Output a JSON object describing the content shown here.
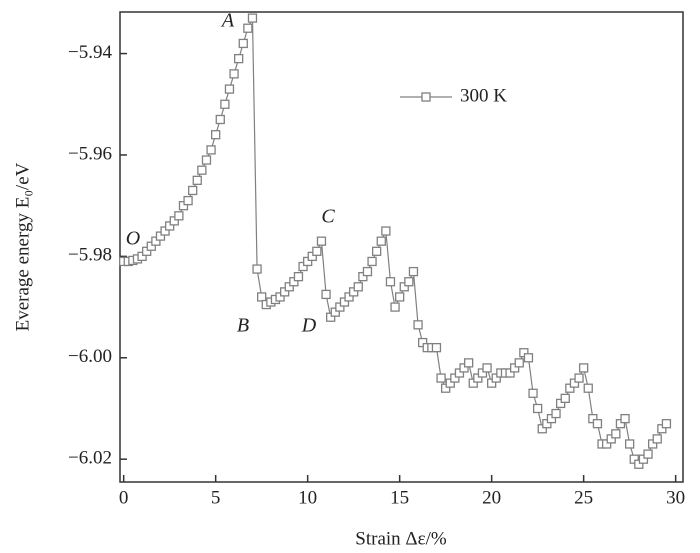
{
  "chart_data": {
    "type": "line",
    "xlabel": "Strain Δε/%",
    "ylabel": "Everage energy E₀/eV",
    "annotations": [
      "A",
      "B",
      "C",
      "D",
      "O"
    ],
    "legend": "upper right",
    "xlim": [
      -0.2,
      30.4
    ],
    "ylim": [
      -6.0245,
      -5.9318
    ],
    "xticks": [
      0,
      5,
      10,
      15,
      20,
      25,
      30
    ],
    "yticks": [
      {
        "value": -5.94,
        "label": "−5.94"
      },
      {
        "value": -5.96,
        "label": "−5.96"
      },
      {
        "value": -5.98,
        "label": "−5.98"
      },
      {
        "value": -6.0,
        "label": "−6.00"
      },
      {
        "value": -6.02,
        "label": "−6.02"
      }
    ],
    "x": [
      0,
      0.25,
      0.5,
      0.75,
      1,
      1.25,
      1.5,
      1.75,
      2,
      2.25,
      2.5,
      2.75,
      3,
      3.25,
      3.5,
      3.75,
      4,
      4.25,
      4.5,
      4.75,
      5,
      5.25,
      5.5,
      5.75,
      6,
      6.25,
      6.5,
      6.75,
      7,
      7.25,
      7.5,
      7.75,
      8,
      8.25,
      8.5,
      8.75,
      9,
      9.25,
      9.5,
      9.75,
      10,
      10.25,
      10.5,
      10.75,
      11,
      11.25,
      11.5,
      11.75,
      12,
      12.25,
      12.5,
      12.75,
      13,
      13.25,
      13.5,
      13.75,
      14,
      14.25,
      14.5,
      14.75,
      15,
      15.25,
      15.5,
      15.75,
      16,
      16.25,
      16.5,
      16.75,
      17,
      17.25,
      17.5,
      17.75,
      18,
      18.25,
      18.5,
      18.75,
      19,
      19.25,
      19.5,
      19.75,
      20,
      20.25,
      20.5,
      20.75,
      21,
      21.25,
      21.5,
      21.75,
      22,
      22.25,
      22.5,
      22.75,
      23,
      23.25,
      23.5,
      23.75,
      24,
      24.25,
      24.5,
      24.75,
      25,
      25.25,
      25.5,
      25.75,
      26,
      26.25,
      26.5,
      26.75,
      27,
      27.25,
      27.5,
      27.75,
      28,
      28.25,
      28.5,
      28.75,
      29,
      29.25,
      29.5
    ],
    "series": [
      {
        "name": "300 K",
        "color": "#808080",
        "values": [
          -5.981,
          -5.981,
          -5.9808,
          -5.9805,
          -5.98,
          -5.979,
          -5.978,
          -5.977,
          -5.976,
          -5.975,
          -5.974,
          -5.973,
          -5.972,
          -5.97,
          -5.969,
          -5.967,
          -5.965,
          -5.963,
          -5.961,
          -5.959,
          -5.956,
          -5.953,
          -5.95,
          -5.947,
          -5.944,
          -5.941,
          -5.938,
          -5.935,
          -5.933,
          -5.9825,
          -5.988,
          -5.9895,
          -5.989,
          -5.9885,
          -5.988,
          -5.987,
          -5.986,
          -5.985,
          -5.984,
          -5.982,
          -5.981,
          -5.98,
          -5.979,
          -5.977,
          -5.9875,
          -5.992,
          -5.991,
          -5.99,
          -5.989,
          -5.988,
          -5.987,
          -5.986,
          -5.984,
          -5.983,
          -5.981,
          -5.979,
          -5.977,
          -5.975,
          -5.985,
          -5.99,
          -5.988,
          -5.986,
          -5.985,
          -5.983,
          -5.9935,
          -5.997,
          -5.998,
          -5.998,
          -5.998,
          -6.004,
          -6.006,
          -6.005,
          -6.004,
          -6.003,
          -6.002,
          -6.001,
          -6.005,
          -6.004,
          -6.003,
          -6.002,
          -6.005,
          -6.004,
          -6.003,
          -6.003,
          -6.003,
          -6.002,
          -6.001,
          -5.999,
          -6.0,
          -6.007,
          -6.01,
          -6.014,
          -6.013,
          -6.012,
          -6.011,
          -6.009,
          -6.008,
          -6.006,
          -6.005,
          -6.004,
          -6.002,
          -6.006,
          -6.012,
          -6.013,
          -6.017,
          -6.017,
          -6.016,
          -6.015,
          -6.013,
          -6.012,
          -6.017,
          -6.02,
          -6.021,
          -6.02,
          -6.019,
          -6.017,
          -6.016,
          -6.014,
          -6.013
        ]
      }
    ]
  }
}
